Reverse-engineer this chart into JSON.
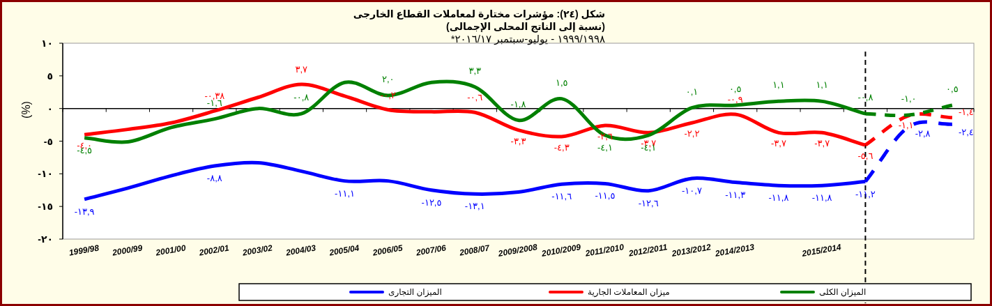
{
  "chart_data": {
    "type": "line",
    "title": "شكل (٢٤): مؤشرات مختارة لمعاملات القطاع الخارجى (نسبة إلى الناتج المحلى الإجمالى)",
    "subtitle": "١٩٩٩/١٩٩٨ - يوليو-سبتمبر ٢٠١٦/١٧*",
    "ylabel": "(%)",
    "categories": [
      "1999/98",
      "2000/99",
      "2001/00",
      "2002/01",
      "2003/02",
      "2004/03",
      "2005/04",
      "2006/05",
      "2007/06",
      "2008/07",
      "2009/2008",
      "2010/2009",
      "2011/2010",
      "2012/2011",
      "2013/2012",
      "2014/2013",
      null,
      "2015/2014",
      null,
      null,
      null
    ],
    "series": [
      {
        "name": "الميزان التجارى",
        "color": "#0000ff",
        "line_style": "solid",
        "values": [
          -13.9,
          -12.2,
          -10.3,
          -8.8,
          -8.3,
          -9.6,
          -11.1,
          -11.1,
          -12.5,
          -13.1,
          -12.8,
          -11.6,
          -11.5,
          -12.6,
          -10.7,
          -11.3,
          -11.8,
          -11.8,
          -11.2,
          null,
          null
        ],
        "value_labels": [
          "-١٣,٩",
          null,
          null,
          "-٨,٨",
          null,
          null,
          "-١١,١",
          null,
          "-١٢,٥",
          "-١٣,١",
          null,
          "-١١,٦",
          "-١١,٥",
          "-١٢,٦",
          "-١٠,٧",
          "-١١,٣",
          "-١١,٨",
          "-١١,٨",
          "-١١,٢",
          null,
          null
        ]
      },
      {
        "name": "ميزان المعاملات الجارية",
        "color": "#ff0000",
        "line_style": "solid",
        "values": [
          -4.0,
          -3.2,
          -2.2,
          -0.38,
          1.7,
          3.7,
          1.9,
          -0.2,
          -0.5,
          -0.6,
          -3.3,
          -4.3,
          -2.6,
          -3.7,
          -2.2,
          -0.9,
          -3.7,
          -3.7,
          -5.6,
          null,
          null
        ],
        "value_labels": [
          "-٤,٠",
          null,
          null,
          "-٠,٣٨",
          null,
          "٣,٧",
          null,
          "-٠,٢",
          null,
          "-٠,٦",
          "-٣,٣",
          "-٤,٣",
          "-٢,٦",
          "-٣,٧",
          "-٢,٢",
          "-٠,٩",
          "-٣,٧",
          "-٣,٧",
          "-٥,٦",
          null,
          null
        ]
      },
      {
        "name": "الميزان الكلى",
        "color": "#008000",
        "line_style": "solid",
        "values": [
          -4.5,
          -5.1,
          -2.9,
          -1.6,
          0.0,
          -0.8,
          4.0,
          2.0,
          4.0,
          3.3,
          -1.8,
          1.5,
          -4.1,
          -4.1,
          0.1,
          0.5,
          1.1,
          1.1,
          -0.8,
          null,
          null
        ],
        "value_labels": [
          "-٤,٥",
          null,
          null,
          "-١,٦",
          null,
          "-٠,٨",
          null,
          "٢,٠",
          null,
          "٣,٣",
          "-١,٨",
          "١,٥",
          "-٤,١",
          "-٤,١",
          "٠,١",
          "٠,٥",
          "١,١",
          "١,١",
          "-٠,٨",
          null,
          null
        ]
      },
      {
        "color": "#0000ff",
        "line_style": "dashed",
        "values": [
          null,
          null,
          null,
          null,
          null,
          null,
          null,
          null,
          null,
          null,
          null,
          null,
          null,
          null,
          null,
          null,
          null,
          null,
          -11.2,
          -2.8,
          -2.4
        ],
        "value_labels": [
          null,
          null,
          null,
          null,
          null,
          null,
          null,
          null,
          null,
          null,
          null,
          null,
          null,
          null,
          null,
          null,
          null,
          null,
          null,
          "-٢,٨",
          "-٢,٤"
        ]
      },
      {
        "color": "#ff0000",
        "line_style": "dashed",
        "values": [
          null,
          null,
          null,
          null,
          null,
          null,
          null,
          null,
          null,
          null,
          null,
          null,
          null,
          null,
          null,
          null,
          null,
          null,
          -5.6,
          -1.1,
          -1.4
        ],
        "value_labels": [
          null,
          null,
          null,
          null,
          null,
          null,
          null,
          null,
          null,
          null,
          null,
          null,
          null,
          null,
          null,
          null,
          null,
          null,
          null,
          "-١,١",
          "-١,٤"
        ]
      },
      {
        "color": "#008000",
        "line_style": "dashed",
        "values": [
          null,
          null,
          null,
          null,
          null,
          null,
          null,
          null,
          null,
          null,
          null,
          null,
          null,
          null,
          null,
          null,
          null,
          null,
          -0.8,
          -1.0,
          0.5
        ],
        "value_labels": [
          null,
          null,
          null,
          null,
          null,
          null,
          null,
          null,
          null,
          null,
          null,
          null,
          null,
          null,
          null,
          null,
          null,
          null,
          null,
          "-١,٠",
          "٠,٥"
        ]
      }
    ],
    "ylim": [
      -20,
      10
    ],
    "yticks": [
      {
        "value": 10,
        "label": "١٠"
      },
      {
        "value": 5,
        "label": "٥"
      },
      {
        "value": 0,
        "label": "٠"
      },
      {
        "value": -5,
        "label": "-٥"
      },
      {
        "value": -10,
        "label": "-١٠"
      },
      {
        "value": -15,
        "label": "-١٥"
      },
      {
        "value": -20,
        "label": "-٢٠"
      }
    ],
    "legend": "bottom"
  }
}
